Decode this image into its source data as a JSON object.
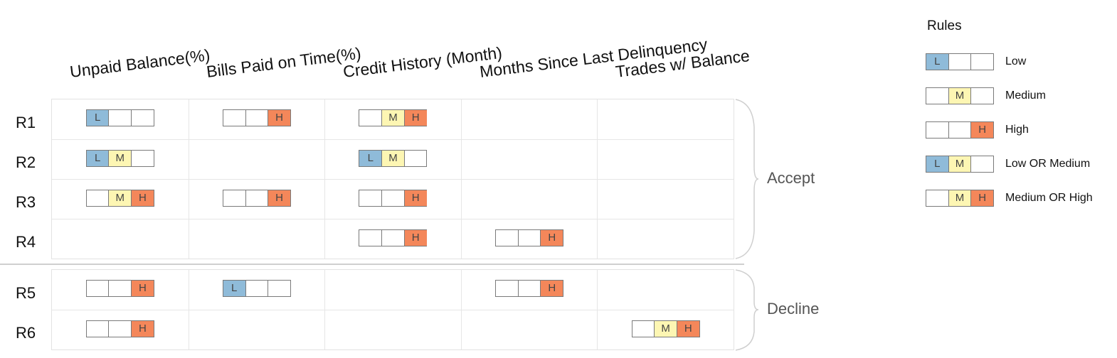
{
  "columns": [
    "Unpaid Balance(%)",
    "Bills Paid on Time(%)",
    "Credit History (Month)",
    "Months Since Last Delinquency",
    "Trades w/ Balance"
  ],
  "levels": {
    "L": "L",
    "M": "M",
    "H": "H"
  },
  "colors": {
    "low": "#8fbbd9",
    "medium": "#fdf6b3",
    "high": "#f4875a"
  },
  "groups": [
    {
      "outcome": "Accept",
      "rules": [
        {
          "id": "R1",
          "conditions": [
            [
              "L"
            ],
            [
              "H"
            ],
            [
              "M",
              "H"
            ],
            [],
            []
          ]
        },
        {
          "id": "R2",
          "conditions": [
            [
              "L",
              "M"
            ],
            [],
            [
              "L",
              "M"
            ],
            [],
            []
          ]
        },
        {
          "id": "R3",
          "conditions": [
            [
              "M",
              "H"
            ],
            [
              "H"
            ],
            [
              "H"
            ],
            [],
            []
          ]
        },
        {
          "id": "R4",
          "conditions": [
            [],
            [],
            [
              "H"
            ],
            [
              "H"
            ],
            []
          ]
        }
      ]
    },
    {
      "outcome": "Decline",
      "rules": [
        {
          "id": "R5",
          "conditions": [
            [
              "H"
            ],
            [
              "L"
            ],
            [],
            [
              "H"
            ],
            []
          ]
        },
        {
          "id": "R6",
          "conditions": [
            [
              "H"
            ],
            [],
            [],
            [],
            [
              "M",
              "H"
            ]
          ]
        }
      ]
    }
  ],
  "legend": {
    "title": "Rules",
    "items": [
      {
        "levels": [
          "L"
        ],
        "label": "Low"
      },
      {
        "levels": [
          "M"
        ],
        "label": "Medium"
      },
      {
        "levels": [
          "H"
        ],
        "label": "High"
      },
      {
        "levels": [
          "L",
          "M"
        ],
        "label": "Low OR Medium"
      },
      {
        "levels": [
          "M",
          "H"
        ],
        "label": "Medium OR High"
      }
    ]
  }
}
